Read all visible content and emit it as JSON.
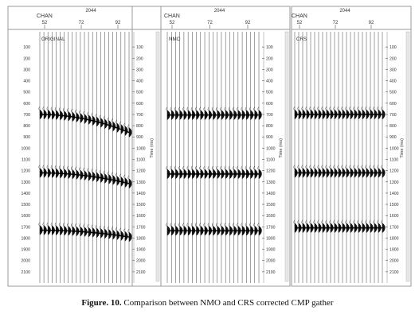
{
  "figure": {
    "y_axis_label": "Time (ms)",
    "time_ticks": [
      "100",
      "200",
      "300",
      "400",
      "500",
      "600",
      "700",
      "800",
      "900",
      "1000",
      "1100",
      "1200",
      "1300",
      "1400",
      "1500",
      "1600",
      "1700",
      "1800",
      "1900",
      "2000",
      "2100"
    ],
    "panels": [
      {
        "cmp_header": "2044",
        "chan_label": "CHAN",
        "chan_ticks": [
          "52",
          "72",
          "92"
        ],
        "panel_label": "ORIGINAL",
        "trace_count": 23,
        "events": [
          {
            "time_ms": 700,
            "moveout_ms": 160
          },
          {
            "time_ms": 1220,
            "moveout_ms": 95
          },
          {
            "time_ms": 1730,
            "moveout_ms": 60
          }
        ]
      },
      {
        "cmp_header": "2044",
        "chan_label": "CHAN",
        "chan_ticks": [
          "52",
          "72",
          "92"
        ],
        "panel_label": "NMO",
        "trace_count": 23,
        "events": [
          {
            "time_ms": 705,
            "moveout_ms": 0
          },
          {
            "time_ms": 1230,
            "moveout_ms": 0
          },
          {
            "time_ms": 1735,
            "moveout_ms": 0
          }
        ]
      },
      {
        "cmp_header": "2044",
        "chan_label": "CHAN",
        "chan_ticks": [
          "52",
          "72",
          "92"
        ],
        "panel_label": "CRS",
        "trace_count": 23,
        "events": [
          {
            "time_ms": 700,
            "moveout_ms": 0
          },
          {
            "time_ms": 1220,
            "moveout_ms": 0
          },
          {
            "time_ms": 1710,
            "moveout_ms": 0
          }
        ]
      }
    ]
  },
  "caption": {
    "prefix": "Figure. 10.",
    "text": " Comparison between NMO and CRS corrected CMP gather"
  }
}
